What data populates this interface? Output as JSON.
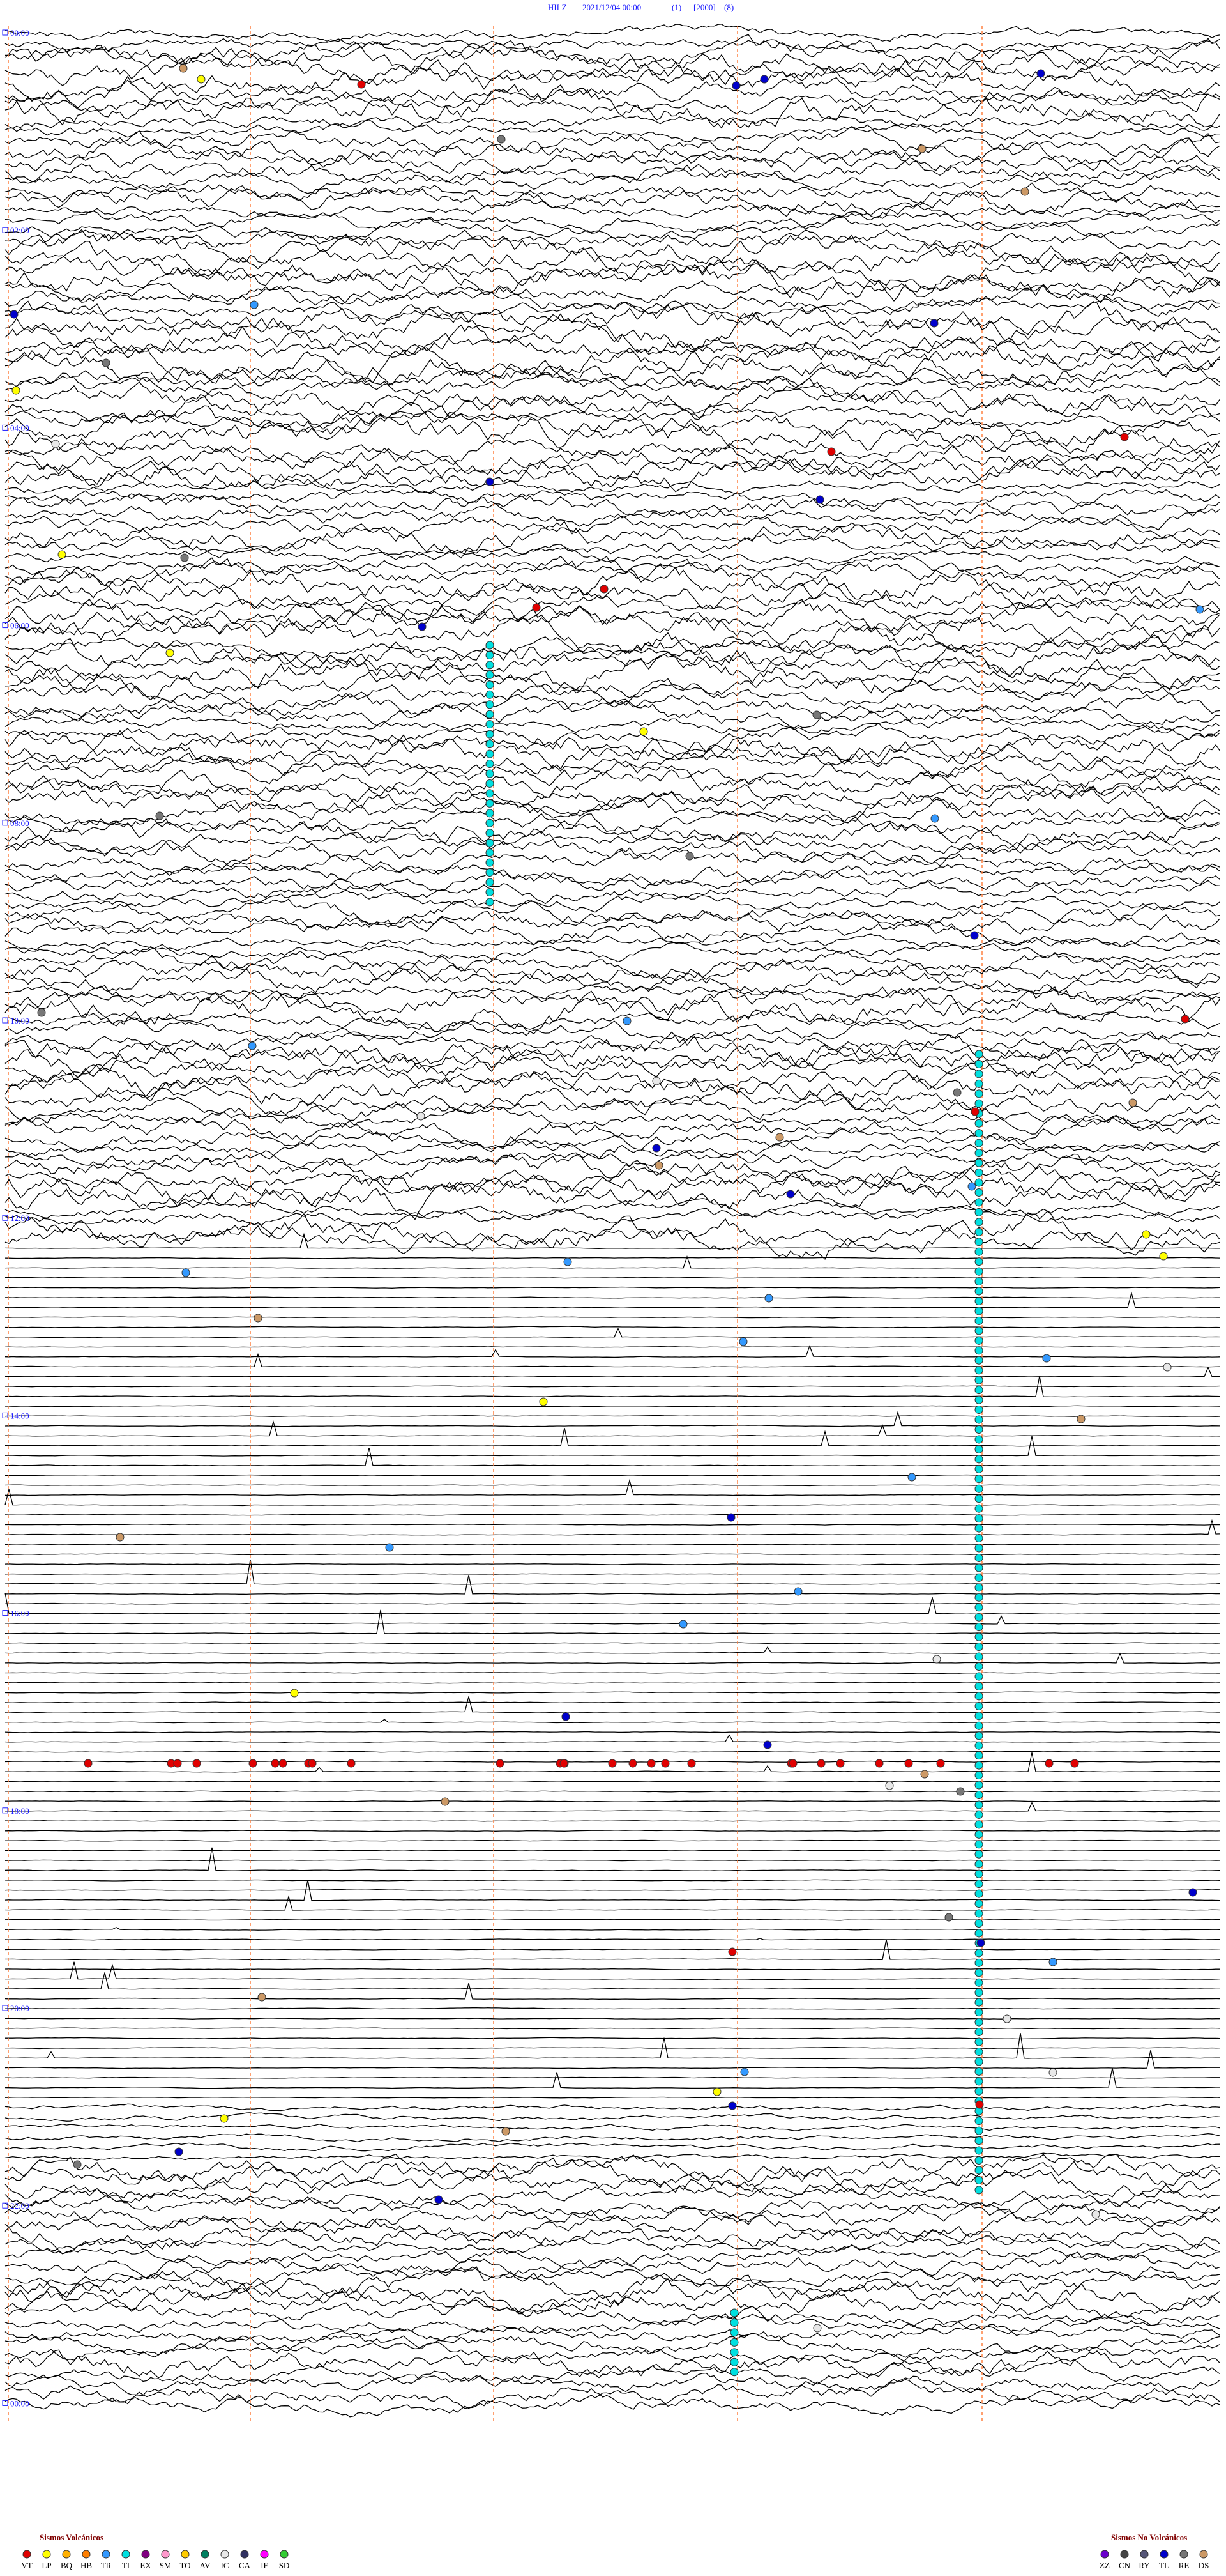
{
  "header": {
    "station": "HILZ",
    "datetime": "2021/12/04 00:00",
    "params": [
      "(1)",
      "[2000]",
      "(8)"
    ]
  },
  "time_labels": [
    "00:00",
    "02:00",
    "04:00",
    "06:00",
    "08:00",
    "10:00",
    "12:00",
    "14:00",
    "16:00",
    "18:00",
    "20:00",
    "22:00",
    "00:00"
  ],
  "legend": {
    "volcanic": {
      "title": "Sismos Volcánicos",
      "items": [
        {
          "code": "VT",
          "color": "#e00000"
        },
        {
          "code": "LP",
          "color": "#ffff00"
        },
        {
          "code": "BQ",
          "color": "#ffb000"
        },
        {
          "code": "HB",
          "color": "#ff7f00"
        },
        {
          "code": "TR",
          "color": "#3399ff"
        },
        {
          "code": "TI",
          "color": "#00e0e0"
        },
        {
          "code": "EX",
          "color": "#800080"
        },
        {
          "code": "SM",
          "color": "#ff99cc"
        },
        {
          "code": "TO",
          "color": "#ffcc00"
        },
        {
          "code": "AV",
          "color": "#008060"
        },
        {
          "code": "IC",
          "color": "#e8e8e8"
        },
        {
          "code": "CA",
          "color": "#303060"
        },
        {
          "code": "IF",
          "color": "#ff00ff"
        },
        {
          "code": "SD",
          "color": "#33cc33"
        }
      ]
    },
    "non_volcanic": {
      "title": "Sismos No Volcánicos",
      "items": [
        {
          "code": "ZZ",
          "color": "#6a00cc"
        },
        {
          "code": "CN",
          "color": "#444444"
        },
        {
          "code": "RY",
          "color": "#555577"
        },
        {
          "code": "TL",
          "color": "#0000cc"
        },
        {
          "code": "RE",
          "color": "#777777"
        },
        {
          "code": "DS",
          "color": "#cc9966"
        }
      ]
    }
  }
}
